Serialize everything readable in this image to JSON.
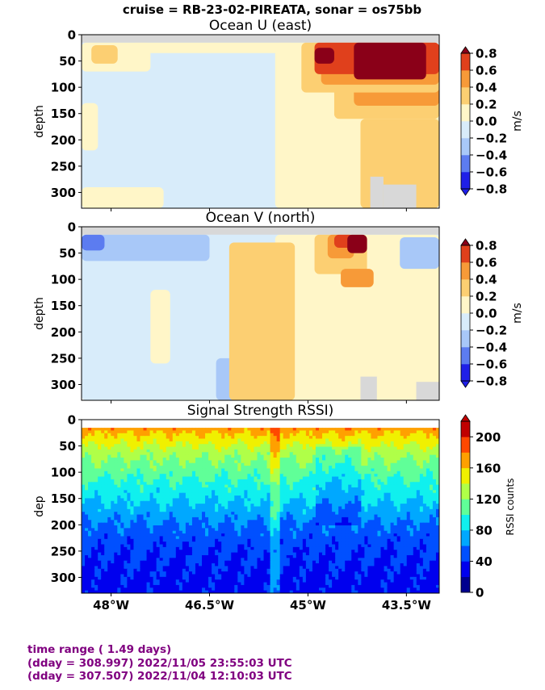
{
  "figure": {
    "suptitle": "cruise = RB-23-02-PIREATA,  sonar = os75bb",
    "footer": [
      "time range ( 1.49 days)",
      "(dday = 308.997) 2022/11/05 23:55:03 UTC",
      "(dday = 307.507) 2022/11/04 12:10:03 UTC"
    ]
  },
  "chart_data": [
    {
      "type": "heatmap",
      "title": "Ocean U (east)",
      "ylabel": "depth",
      "ylim": [
        330,
        0
      ],
      "yticks": [
        0,
        50,
        100,
        150,
        200,
        250,
        300
      ],
      "xlim": [
        -48.45,
        -43.0
      ],
      "xticks": [
        -48.0,
        -46.5,
        -45.0,
        -43.5
      ],
      "xtick_labels": [
        "48°W",
        "46.5°W",
        "45°W",
        "43.5°W"
      ],
      "show_xtick_labels": false,
      "colorbar": {
        "label": "m/s",
        "levels": [
          -0.8,
          -0.6,
          -0.4,
          -0.2,
          0.0,
          0.2,
          0.4,
          0.6,
          0.8
        ],
        "tick_labels": [
          "−0.8",
          "−0.6",
          "−0.4",
          "−0.2",
          "0.0",
          "0.2",
          "0.4",
          "0.6",
          "0.8"
        ],
        "colors": [
          "#1f1fe8",
          "#5c7cf0",
          "#a8c8f8",
          "#d8ecfa",
          "#fff6c8",
          "#fccf72",
          "#f79a38",
          "#e0401c",
          "#8a0018"
        ],
        "extend": "both"
      },
      "missing_color": "#d8d8d8",
      "regions": [
        {
          "x": [
            -48.45,
            -43.0
          ],
          "depth": [
            0,
            330
          ],
          "value": -0.1
        },
        {
          "x": [
            -45.5,
            -43.0
          ],
          "depth": [
            15,
            330
          ],
          "value": 0.1
        },
        {
          "x": [
            -48.45,
            -47.4
          ],
          "depth": [
            15,
            70
          ],
          "value": 0.1
        },
        {
          "x": [
            -48.3,
            -47.9
          ],
          "depth": [
            20,
            55
          ],
          "value": 0.3
        },
        {
          "x": [
            -47.7,
            -45.2
          ],
          "depth": [
            15,
            35
          ],
          "value": 0.1
        },
        {
          "x": [
            -48.45,
            -47.2
          ],
          "depth": [
            290,
            330
          ],
          "value": 0.1
        },
        {
          "x": [
            -48.45,
            -48.2
          ],
          "depth": [
            130,
            220
          ],
          "value": 0.1
        },
        {
          "x": [
            -44.2,
            -43.0
          ],
          "depth": [
            160,
            330
          ],
          "value": 0.3
        },
        {
          "x": [
            -44.6,
            -43.0
          ],
          "depth": [
            15,
            160
          ],
          "value": 0.3
        },
        {
          "x": [
            -44.3,
            -43.0
          ],
          "depth": [
            15,
            135
          ],
          "value": 0.5
        },
        {
          "x": [
            -45.1,
            -43.0
          ],
          "depth": [
            15,
            110
          ],
          "value": 0.3
        },
        {
          "x": [
            -44.8,
            -43.0
          ],
          "depth": [
            15,
            95
          ],
          "value": 0.5
        },
        {
          "x": [
            -44.9,
            -43.0
          ],
          "depth": [
            15,
            75
          ],
          "value": 0.7
        },
        {
          "x": [
            -44.3,
            -43.2
          ],
          "depth": [
            15,
            85
          ],
          "value": 0.9
        },
        {
          "x": [
            -44.9,
            -44.6
          ],
          "depth": [
            25,
            55
          ],
          "value": 0.9
        }
      ],
      "missing": [
        {
          "x": [
            -48.45,
            -43.0
          ],
          "depth": [
            0,
            15
          ]
        },
        {
          "x": [
            -43.85,
            -43.35
          ],
          "depth": [
            285,
            330
          ]
        },
        {
          "x": [
            -44.05,
            -43.85
          ],
          "depth": [
            270,
            330
          ]
        }
      ]
    },
    {
      "type": "heatmap",
      "title": "Ocean V (north)",
      "ylabel": "depth",
      "ylim": [
        330,
        0
      ],
      "yticks": [
        0,
        50,
        100,
        150,
        200,
        250,
        300
      ],
      "xlim": [
        -48.45,
        -43.0
      ],
      "xticks": [
        -48.0,
        -46.5,
        -45.0,
        -43.5
      ],
      "xtick_labels": [
        "48°W",
        "46.5°W",
        "45°W",
        "43.5°W"
      ],
      "show_xtick_labels": false,
      "colorbar": {
        "label": "m/s",
        "levels": [
          -0.8,
          -0.6,
          -0.4,
          -0.2,
          0.0,
          0.2,
          0.4,
          0.6,
          0.8
        ],
        "tick_labels": [
          "−0.8",
          "−0.6",
          "−0.4",
          "−0.2",
          "0.0",
          "0.2",
          "0.4",
          "0.6",
          "0.8"
        ],
        "colors": [
          "#1f1fe8",
          "#5c7cf0",
          "#a8c8f8",
          "#d8ecfa",
          "#fff6c8",
          "#fccf72",
          "#f79a38",
          "#e0401c",
          "#8a0018"
        ],
        "extend": "both"
      },
      "missing_color": "#d8d8d8",
      "regions": [
        {
          "x": [
            -48.45,
            -43.0
          ],
          "depth": [
            0,
            330
          ],
          "value": -0.1
        },
        {
          "x": [
            -45.5,
            -43.0
          ],
          "depth": [
            15,
            330
          ],
          "value": 0.1
        },
        {
          "x": [
            -46.4,
            -46.0
          ],
          "depth": [
            250,
            330
          ],
          "value": -0.3
        },
        {
          "x": [
            -48.45,
            -46.5
          ],
          "depth": [
            15,
            65
          ],
          "value": -0.3
        },
        {
          "x": [
            -48.45,
            -48.1
          ],
          "depth": [
            15,
            45
          ],
          "value": -0.5
        },
        {
          "x": [
            -43.6,
            -43.0
          ],
          "depth": [
            20,
            80
          ],
          "value": -0.3
        },
        {
          "x": [
            -47.4,
            -47.1
          ],
          "depth": [
            120,
            260
          ],
          "value": 0.1
        },
        {
          "x": [
            -46.2,
            -45.2
          ],
          "depth": [
            30,
            330
          ],
          "value": 0.3
        },
        {
          "x": [
            -44.9,
            -44.1
          ],
          "depth": [
            15,
            90
          ],
          "value": 0.3
        },
        {
          "x": [
            -44.7,
            -44.3
          ],
          "depth": [
            15,
            60
          ],
          "value": 0.5
        },
        {
          "x": [
            -44.6,
            -44.3
          ],
          "depth": [
            15,
            40
          ],
          "value": 0.7
        },
        {
          "x": [
            -44.5,
            -44.0
          ],
          "depth": [
            80,
            115
          ],
          "value": 0.5
        },
        {
          "x": [
            -44.4,
            -44.1
          ],
          "depth": [
            15,
            50
          ],
          "value": 0.9
        }
      ],
      "missing": [
        {
          "x": [
            -48.45,
            -43.0
          ],
          "depth": [
            0,
            15
          ]
        },
        {
          "x": [
            -43.35,
            -43.0
          ],
          "depth": [
            295,
            330
          ]
        },
        {
          "x": [
            -44.2,
            -43.95
          ],
          "depth": [
            285,
            330
          ]
        }
      ]
    },
    {
      "type": "heatmap",
      "title": "Signal Strength RSSI)",
      "ylabel": "dep",
      "ylim": [
        330,
        0
      ],
      "yticks": [
        0,
        50,
        100,
        150,
        200,
        250,
        300
      ],
      "xlim": [
        -48.45,
        -43.0
      ],
      "xticks": [
        -48.0,
        -46.5,
        -45.0,
        -43.5
      ],
      "xtick_labels": [
        "48°W",
        "46.5°W",
        "45°W",
        "43.5°W"
      ],
      "show_xtick_labels": true,
      "colorbar": {
        "label": "RSSI counts",
        "levels": [
          0,
          20,
          40,
          60,
          80,
          100,
          120,
          140,
          160,
          180,
          200,
          220
        ],
        "ticks": [
          0,
          40,
          80,
          120,
          160,
          200
        ],
        "tick_labels": [
          "0",
          "40",
          "80",
          "120",
          "160",
          "200"
        ],
        "colors": [
          "#00008f",
          "#0000ee",
          "#0050ff",
          "#00a8ff",
          "#10f0ee",
          "#60ff98",
          "#b0ff48",
          "#f0f000",
          "#ffa000",
          "#ff4800",
          "#c00000"
        ],
        "extend": "max"
      },
      "missing_color": "#ffffff",
      "profile": {
        "depth": [
          15,
          25,
          40,
          60,
          80,
          100,
          120,
          140,
          160,
          180,
          200,
          220,
          250,
          280,
          310,
          330
        ],
        "rssi": [
          175,
          162,
          148,
          130,
          118,
          108,
          96,
          88,
          78,
          68,
          58,
          50,
          42,
          38,
          34,
          32
        ]
      },
      "missing": [
        {
          "x": [
            -48.45,
            -43.0
          ],
          "depth": [
            0,
            15
          ]
        }
      ]
    }
  ]
}
